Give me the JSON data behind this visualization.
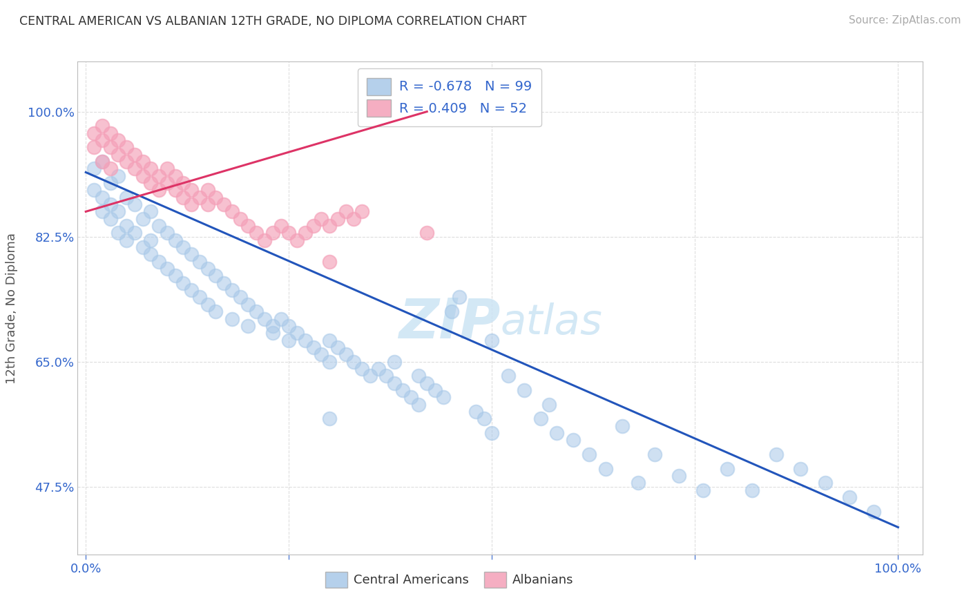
{
  "title": "CENTRAL AMERICAN VS ALBANIAN 12TH GRADE, NO DIPLOMA CORRELATION CHART",
  "source": "Source: ZipAtlas.com",
  "ylabel": "12th Grade, No Diploma",
  "r_blue": -0.678,
  "n_blue": 99,
  "r_pink": 0.409,
  "n_pink": 52,
  "blue_color": "#a8c8e8",
  "pink_color": "#f4a0b8",
  "blue_line_color": "#2255bb",
  "pink_line_color": "#dd3366",
  "tick_color": "#3366cc",
  "axis_label_color": "#555555",
  "watermark_color": "#cce4f4",
  "yticks": [
    0.475,
    0.65,
    0.825,
    1.0
  ],
  "ytick_labels": [
    "47.5%",
    "65.0%",
    "82.5%",
    "100.0%"
  ],
  "xticks": [
    0.0,
    0.25,
    0.5,
    0.75,
    1.0
  ],
  "xtick_labels": [
    "0.0%",
    "",
    "",
    "",
    "100.0%"
  ],
  "xlim": [
    -0.01,
    1.03
  ],
  "ylim": [
    0.38,
    1.07
  ],
  "blue_x": [
    0.01,
    0.01,
    0.02,
    0.02,
    0.02,
    0.03,
    0.03,
    0.03,
    0.04,
    0.04,
    0.04,
    0.05,
    0.05,
    0.05,
    0.06,
    0.06,
    0.07,
    0.07,
    0.08,
    0.08,
    0.08,
    0.09,
    0.09,
    0.1,
    0.1,
    0.11,
    0.11,
    0.12,
    0.12,
    0.13,
    0.13,
    0.14,
    0.14,
    0.15,
    0.15,
    0.16,
    0.16,
    0.17,
    0.18,
    0.18,
    0.19,
    0.2,
    0.2,
    0.21,
    0.22,
    0.23,
    0.23,
    0.24,
    0.25,
    0.25,
    0.26,
    0.27,
    0.28,
    0.29,
    0.3,
    0.3,
    0.31,
    0.32,
    0.33,
    0.34,
    0.35,
    0.36,
    0.37,
    0.38,
    0.38,
    0.39,
    0.4,
    0.41,
    0.41,
    0.42,
    0.43,
    0.44,
    0.45,
    0.46,
    0.48,
    0.49,
    0.5,
    0.52,
    0.54,
    0.56,
    0.57,
    0.58,
    0.6,
    0.62,
    0.64,
    0.66,
    0.68,
    0.7,
    0.73,
    0.76,
    0.79,
    0.82,
    0.85,
    0.88,
    0.91,
    0.94,
    0.97,
    0.5,
    0.3
  ],
  "blue_y": [
    0.92,
    0.89,
    0.93,
    0.88,
    0.86,
    0.9,
    0.87,
    0.85,
    0.91,
    0.86,
    0.83,
    0.88,
    0.84,
    0.82,
    0.87,
    0.83,
    0.85,
    0.81,
    0.86,
    0.82,
    0.8,
    0.84,
    0.79,
    0.83,
    0.78,
    0.82,
    0.77,
    0.81,
    0.76,
    0.8,
    0.75,
    0.79,
    0.74,
    0.78,
    0.73,
    0.77,
    0.72,
    0.76,
    0.75,
    0.71,
    0.74,
    0.73,
    0.7,
    0.72,
    0.71,
    0.7,
    0.69,
    0.71,
    0.7,
    0.68,
    0.69,
    0.68,
    0.67,
    0.66,
    0.65,
    0.68,
    0.67,
    0.66,
    0.65,
    0.64,
    0.63,
    0.64,
    0.63,
    0.62,
    0.65,
    0.61,
    0.6,
    0.63,
    0.59,
    0.62,
    0.61,
    0.6,
    0.72,
    0.74,
    0.58,
    0.57,
    0.68,
    0.63,
    0.61,
    0.57,
    0.59,
    0.55,
    0.54,
    0.52,
    0.5,
    0.56,
    0.48,
    0.52,
    0.49,
    0.47,
    0.5,
    0.47,
    0.52,
    0.5,
    0.48,
    0.46,
    0.44,
    0.55,
    0.57
  ],
  "pink_x": [
    0.01,
    0.01,
    0.02,
    0.02,
    0.02,
    0.03,
    0.03,
    0.03,
    0.04,
    0.04,
    0.05,
    0.05,
    0.06,
    0.06,
    0.07,
    0.07,
    0.08,
    0.08,
    0.09,
    0.09,
    0.1,
    0.1,
    0.11,
    0.11,
    0.12,
    0.12,
    0.13,
    0.13,
    0.14,
    0.15,
    0.15,
    0.16,
    0.17,
    0.18,
    0.19,
    0.2,
    0.21,
    0.22,
    0.23,
    0.24,
    0.25,
    0.26,
    0.27,
    0.28,
    0.29,
    0.3,
    0.31,
    0.32,
    0.33,
    0.34,
    0.3,
    0.42
  ],
  "pink_y": [
    0.97,
    0.95,
    0.96,
    0.93,
    0.98,
    0.95,
    0.92,
    0.97,
    0.94,
    0.96,
    0.93,
    0.95,
    0.92,
    0.94,
    0.91,
    0.93,
    0.9,
    0.92,
    0.89,
    0.91,
    0.9,
    0.92,
    0.89,
    0.91,
    0.88,
    0.9,
    0.87,
    0.89,
    0.88,
    0.87,
    0.89,
    0.88,
    0.87,
    0.86,
    0.85,
    0.84,
    0.83,
    0.82,
    0.83,
    0.84,
    0.83,
    0.82,
    0.83,
    0.84,
    0.85,
    0.84,
    0.85,
    0.86,
    0.85,
    0.86,
    0.79,
    0.83
  ],
  "blue_line_x0": 0.0,
  "blue_line_x1": 1.0,
  "blue_line_y0": 0.915,
  "blue_line_y1": 0.418,
  "pink_line_x0": 0.0,
  "pink_line_x1": 0.42,
  "pink_line_y0": 0.86,
  "pink_line_y1": 1.0
}
